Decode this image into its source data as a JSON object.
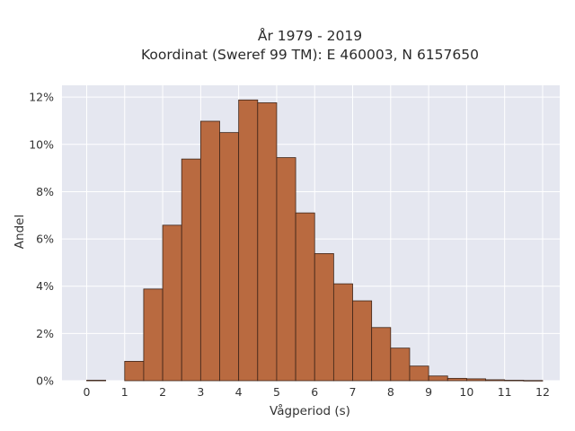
{
  "chart_data": {
    "type": "bar",
    "title_line1": "År 1979 - 2019",
    "title_line2": "Koordinat (Sweref 99 TM): E 460003, N 6157650",
    "xlabel": "Vågperiod (s)",
    "ylabel": "Andel",
    "x_ticks": [
      "0",
      "1",
      "2",
      "3",
      "4",
      "5",
      "6",
      "7",
      "8",
      "9",
      "10",
      "11",
      "12"
    ],
    "y_ticks": [
      "0%",
      "2%",
      "4%",
      "6%",
      "8%",
      "10%",
      "12%"
    ],
    "xlim": [
      -0.65,
      12.45
    ],
    "ylim": [
      0,
      12.5
    ],
    "bin_width": 0.5,
    "bins": [
      {
        "x0": 0.0,
        "value": 0.02
      },
      {
        "x0": 0.5,
        "value": 0.0
      },
      {
        "x0": 1.0,
        "value": 0.82
      },
      {
        "x0": 1.5,
        "value": 3.88
      },
      {
        "x0": 2.0,
        "value": 6.58
      },
      {
        "x0": 2.5,
        "value": 9.38
      },
      {
        "x0": 3.0,
        "value": 10.98
      },
      {
        "x0": 3.5,
        "value": 10.5
      },
      {
        "x0": 4.0,
        "value": 11.88
      },
      {
        "x0": 4.5,
        "value": 11.76
      },
      {
        "x0": 5.0,
        "value": 9.44
      },
      {
        "x0": 5.5,
        "value": 7.1
      },
      {
        "x0": 6.0,
        "value": 5.38
      },
      {
        "x0": 6.5,
        "value": 4.1
      },
      {
        "x0": 7.0,
        "value": 3.38
      },
      {
        "x0": 7.5,
        "value": 2.25
      },
      {
        "x0": 8.0,
        "value": 1.38
      },
      {
        "x0": 8.5,
        "value": 0.62
      },
      {
        "x0": 9.0,
        "value": 0.2
      },
      {
        "x0": 9.5,
        "value": 0.1
      },
      {
        "x0": 10.0,
        "value": 0.08
      },
      {
        "x0": 10.5,
        "value": 0.04
      },
      {
        "x0": 11.0,
        "value": 0.02
      },
      {
        "x0": 11.5,
        "value": 0.01
      }
    ],
    "grid": true,
    "colors": {
      "bar_fill": "#b96a40",
      "bar_edge": "#3d2418",
      "plot_bg": "#e5e7f0",
      "grid": "#ffffff"
    }
  }
}
